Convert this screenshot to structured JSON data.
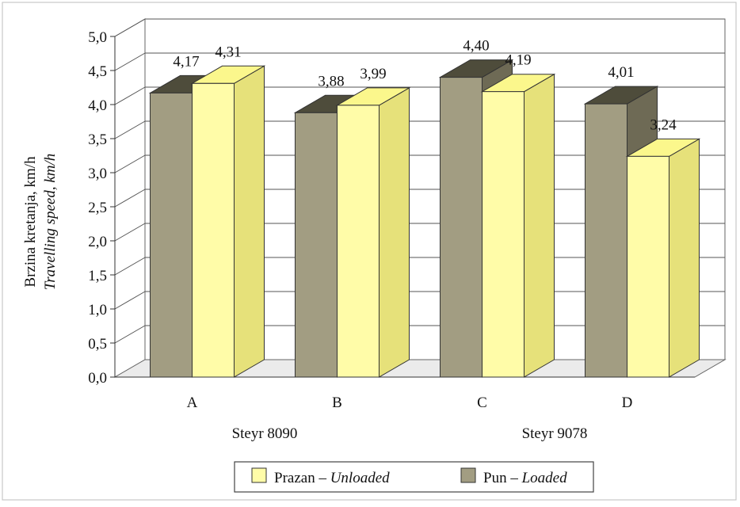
{
  "chart_data": {
    "type": "bar",
    "categories": [
      "A",
      "B",
      "C",
      "D"
    ],
    "groups": [
      {
        "label": "Steyr 8090",
        "categories": [
          "A",
          "B"
        ]
      },
      {
        "label": "Steyr 9078",
        "categories": [
          "C",
          "D"
        ]
      }
    ],
    "series": [
      {
        "name_main": "Pun",
        "name_sep": " – ",
        "name_alt": "Loaded",
        "color": "#a29d82",
        "values": [
          4.17,
          3.88,
          4.4,
          4.01
        ]
      },
      {
        "name_main": "Prazan",
        "name_sep": " – ",
        "name_alt": "Unloaded",
        "color": "#fffca8",
        "values": [
          4.31,
          3.99,
          4.19,
          3.24
        ]
      }
    ],
    "data_labels": {
      "loaded": [
        "4,17",
        "3,88",
        "4,40",
        "4,01"
      ],
      "unloaded": [
        "4,31",
        "3,99",
        "4,19",
        "3,24"
      ]
    },
    "ylabel_main": "Brzina kretanja, km/h",
    "ylabel_alt": "Travelling speed, km/h",
    "ylim": [
      0,
      5
    ],
    "yticks": [
      "0,0",
      "0,5",
      "1,0",
      "1,5",
      "2,0",
      "2,5",
      "3,0",
      "3,5",
      "4,0",
      "4,5",
      "5,0"
    ],
    "grid": true,
    "legend_position": "bottom",
    "legend_order": [
      "Unloaded",
      "Loaded"
    ]
  }
}
